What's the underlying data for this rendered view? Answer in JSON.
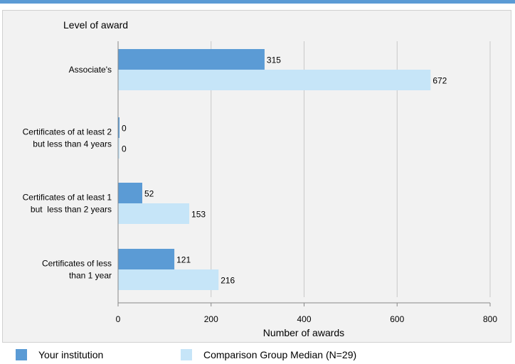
{
  "chart_data": {
    "type": "bar",
    "orientation": "horizontal",
    "title": "Level of award",
    "xlabel": "Number of awards",
    "xlim": [
      0,
      800
    ],
    "xticks": [
      0,
      200,
      400,
      600,
      800
    ],
    "grid": true,
    "categories": [
      [
        "Associate's"
      ],
      [
        "Certificates of at least 2",
        "but less than 4 years"
      ],
      [
        "Certificates of at least 1",
        "but  less than 2 years"
      ],
      [
        "Certificates of less",
        "than 1 year"
      ]
    ],
    "series": [
      {
        "name": "Your institution",
        "values": [
          315,
          0,
          52,
          121
        ],
        "color": "#5b9bd5"
      },
      {
        "name": "Comparison Group Median (N=29)",
        "values": [
          672,
          0,
          153,
          216
        ],
        "color": "#c6e5f8"
      }
    ],
    "legend_position": "bottom"
  }
}
